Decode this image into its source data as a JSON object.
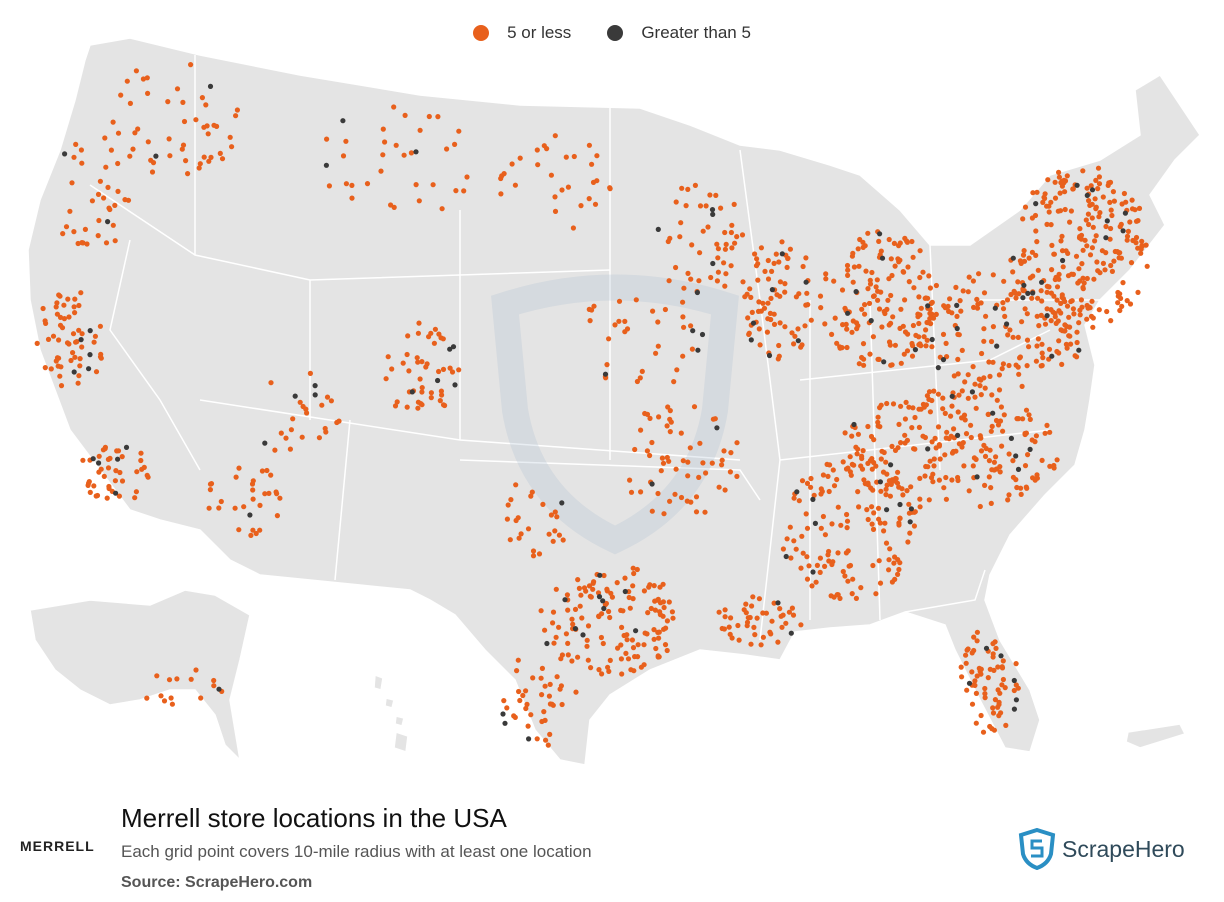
{
  "legend": {
    "items": [
      {
        "label": "5 or less",
        "color": "#e8601c"
      },
      {
        "label": "Greater than 5",
        "color": "#3a3a3a"
      }
    ]
  },
  "title": "Merrell store locations in the USA",
  "subtitle": "Each grid point covers 10-mile radius with at least one location",
  "source": "Source: ScrapeHero.com",
  "brand_logo": "MERRELL",
  "publisher_logo": "ScrapeHero",
  "colors": {
    "land": "#e4e4e4",
    "border": "#ffffff",
    "low": "#e8601c",
    "high": "#3a3a3a",
    "brand_blue": "#2a8fc4"
  },
  "regions": [
    "contiguous-us",
    "alaska",
    "hawaii",
    "puerto-rico"
  ],
  "clusters": [
    {
      "region": "northeast-corridor",
      "density": "very-high"
    },
    {
      "region": "great-lakes",
      "density": "high"
    },
    {
      "region": "southeast",
      "density": "high"
    },
    {
      "region": "texas",
      "density": "high"
    },
    {
      "region": "california",
      "density": "high"
    },
    {
      "region": "florida",
      "density": "high"
    },
    {
      "region": "mountain-west",
      "density": "low"
    },
    {
      "region": "great-plains",
      "density": "low"
    }
  ]
}
